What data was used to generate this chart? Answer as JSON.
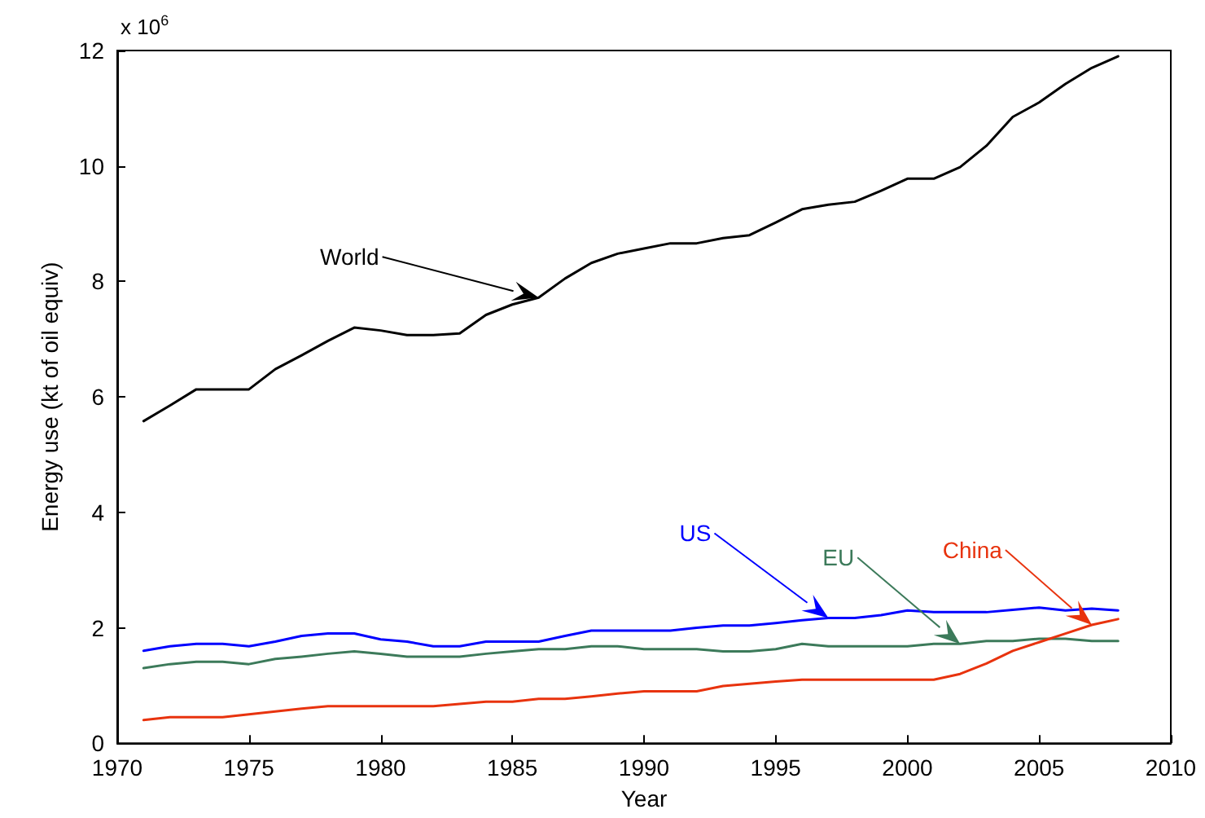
{
  "chart_data": {
    "type": "line",
    "xlabel": "Year",
    "ylabel": "Energy use (kt of oil equiv)",
    "x": [
      1971,
      1972,
      1973,
      1974,
      1975,
      1976,
      1977,
      1978,
      1979,
      1980,
      1981,
      1982,
      1983,
      1984,
      1985,
      1986,
      1987,
      1988,
      1989,
      1990,
      1991,
      1992,
      1993,
      1994,
      1995,
      1996,
      1997,
      1998,
      1999,
      2000,
      2001,
      2002,
      2003,
      2004,
      2005,
      2006,
      2007,
      2008
    ],
    "series": [
      {
        "name": "World",
        "color": "#000000",
        "values": [
          5.58,
          5.85,
          6.13,
          6.13,
          6.13,
          6.48,
          6.72,
          6.97,
          7.2,
          7.15,
          7.07,
          7.07,
          7.1,
          7.42,
          7.6,
          7.72,
          8.05,
          8.32,
          8.48,
          8.57,
          8.66,
          8.66,
          8.75,
          8.8,
          9.02,
          9.25,
          9.33,
          9.38,
          9.57,
          9.78,
          9.78,
          9.98,
          10.35,
          10.85,
          11.1,
          11.42,
          11.7,
          11.9
        ]
      },
      {
        "name": "US",
        "color": "#0000ff",
        "values": [
          1.6,
          1.68,
          1.72,
          1.72,
          1.68,
          1.76,
          1.86,
          1.9,
          1.9,
          1.8,
          1.76,
          1.68,
          1.68,
          1.76,
          1.76,
          1.76,
          1.86,
          1.95,
          1.95,
          1.95,
          1.95,
          2.0,
          2.04,
          2.04,
          2.08,
          2.13,
          2.17,
          2.17,
          2.22,
          2.3,
          2.27,
          2.27,
          2.27,
          2.31,
          2.35,
          2.3,
          2.33,
          2.3
        ]
      },
      {
        "name": "EU",
        "color": "#3c7a5a",
        "values": [
          1.3,
          1.37,
          1.41,
          1.41,
          1.37,
          1.46,
          1.5,
          1.55,
          1.59,
          1.55,
          1.5,
          1.5,
          1.5,
          1.55,
          1.59,
          1.63,
          1.63,
          1.68,
          1.68,
          1.63,
          1.63,
          1.63,
          1.59,
          1.59,
          1.63,
          1.72,
          1.68,
          1.68,
          1.68,
          1.68,
          1.72,
          1.72,
          1.77,
          1.77,
          1.81,
          1.81,
          1.77,
          1.77
        ]
      },
      {
        "name": "China",
        "color": "#e8330e",
        "values": [
          0.4,
          0.45,
          0.45,
          0.45,
          0.5,
          0.55,
          0.6,
          0.64,
          0.64,
          0.64,
          0.64,
          0.64,
          0.68,
          0.72,
          0.72,
          0.77,
          0.77,
          0.81,
          0.86,
          0.9,
          0.9,
          0.9,
          0.99,
          1.03,
          1.07,
          1.1,
          1.1,
          1.1,
          1.1,
          1.1,
          1.1,
          1.2,
          1.38,
          1.6,
          1.75,
          1.9,
          2.05,
          2.15
        ]
      }
    ],
    "annotations": [
      "x 10$^{6}$"
    ],
    "xlim": [
      1970,
      2010
    ],
    "xticks": [
      1970,
      1975,
      1980,
      1985,
      1990,
      1995,
      2000,
      2005,
      2010
    ],
    "ylim": [
      0,
      12
    ],
    "yticks": [
      0,
      2,
      4,
      6,
      8,
      10,
      12
    ],
    "grid": false,
    "marker": "none",
    "line_style": "solid"
  }
}
